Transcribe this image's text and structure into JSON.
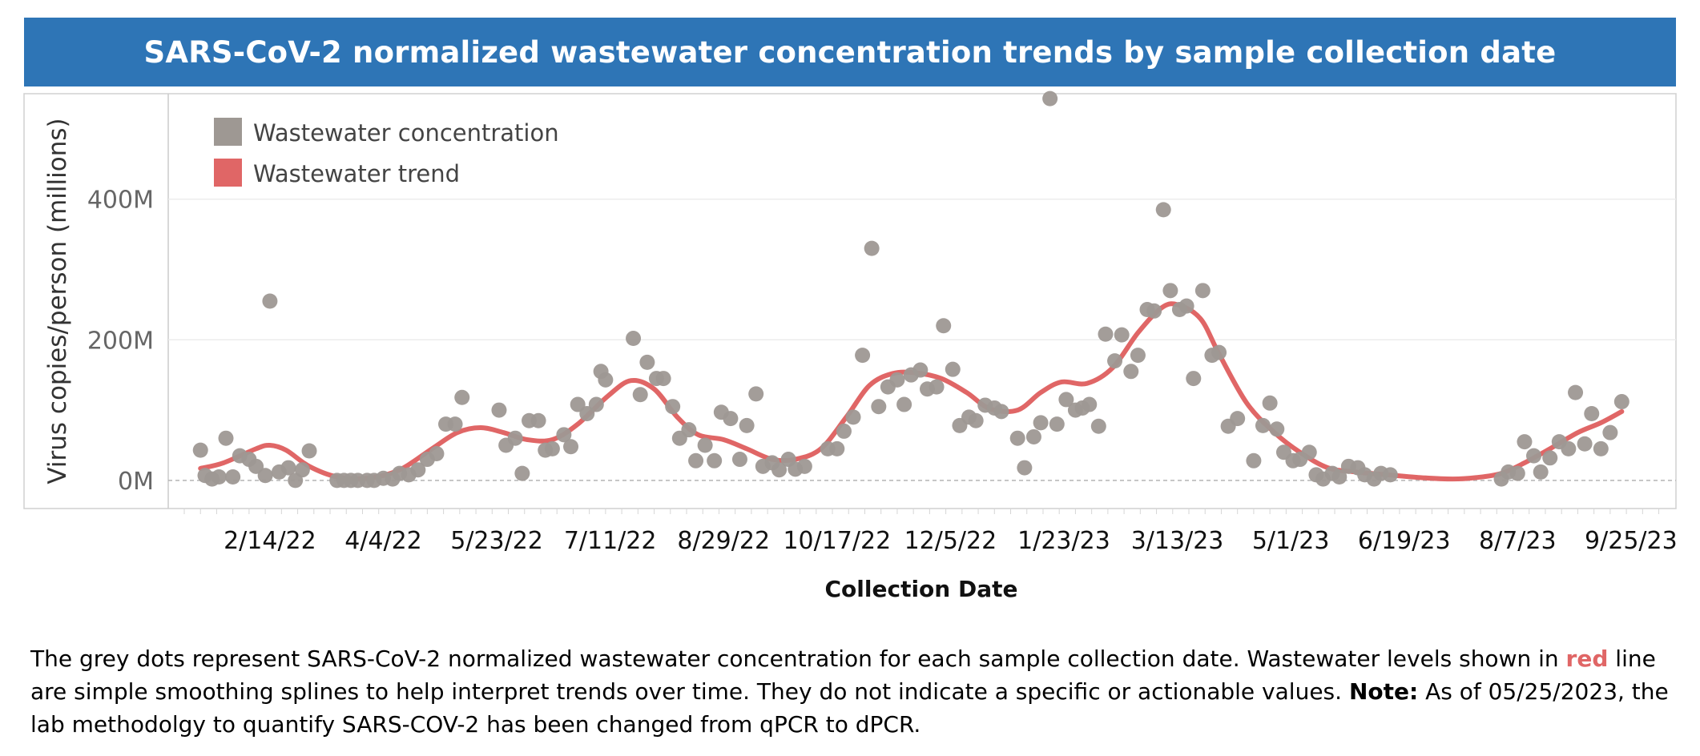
{
  "title": "SARS-CoV-2 normalized wastewater concentration trends by sample collection date",
  "legend": {
    "items": [
      {
        "label": "Wastewater concentration",
        "color": "#9E9893"
      },
      {
        "label": "Wastewater trend",
        "color": "#E06666"
      }
    ]
  },
  "description": {
    "part1": "The grey dots represent  SARS-CoV-2 normalized wastewater concentration for each sample collection date. Wastewater levels shown in ",
    "red_word": "red",
    "part2": " line are simple smoothing splines to help interpret trends over time. They do not indicate a specific or actionable values. ",
    "note_label": "Note:",
    "part3": " As of 05/25/2023, the lab methodolgy to quantify SARS-COV-2 has been changed from qPCR to dPCR."
  },
  "chart_data": {
    "type": "scatter",
    "title": "SARS-CoV-2 normalized wastewater concentration trends by sample collection date",
    "xlabel": "Collection Date",
    "ylabel": "Virus copies/person (millions)",
    "x_ticks": [
      "2/14/22",
      "4/4/22",
      "5/23/22",
      "7/11/22",
      "8/29/22",
      "10/17/22",
      "12/5/22",
      "1/23/23",
      "3/13/23",
      "5/1/23",
      "6/19/23",
      "8/7/23",
      "9/25/23"
    ],
    "y_ticks": [
      "0M",
      "200M",
      "400M"
    ],
    "y_tick_values": [
      0,
      200,
      400
    ],
    "ylim": [
      -40,
      550
    ],
    "xlim": [
      "2022-01-08",
      "2023-10-12"
    ],
    "legend_position": "top-left",
    "grid": true,
    "series": [
      {
        "name": "Wastewater concentration",
        "color": "#9E9893",
        "points": [
          [
            "2022-01-15",
            43
          ],
          [
            "2022-01-17",
            7
          ],
          [
            "2022-01-20",
            2
          ],
          [
            "2022-01-23",
            5
          ],
          [
            "2022-01-26",
            60
          ],
          [
            "2022-01-29",
            5
          ],
          [
            "2022-02-01",
            35
          ],
          [
            "2022-02-05",
            30
          ],
          [
            "2022-02-08",
            20
          ],
          [
            "2022-02-12",
            7
          ],
          [
            "2022-02-14",
            255
          ],
          [
            "2022-02-18",
            12
          ],
          [
            "2022-02-22",
            18
          ],
          [
            "2022-02-25",
            0
          ],
          [
            "2022-02-28",
            15
          ],
          [
            "2022-03-03",
            42
          ],
          [
            "2022-03-15",
            0
          ],
          [
            "2022-03-18",
            0
          ],
          [
            "2022-03-21",
            0
          ],
          [
            "2022-03-24",
            0
          ],
          [
            "2022-03-28",
            0
          ],
          [
            "2022-03-31",
            0
          ],
          [
            "2022-04-04",
            3
          ],
          [
            "2022-04-08",
            2
          ],
          [
            "2022-04-11",
            10
          ],
          [
            "2022-04-15",
            8
          ],
          [
            "2022-04-19",
            15
          ],
          [
            "2022-04-23",
            30
          ],
          [
            "2022-04-27",
            38
          ],
          [
            "2022-05-01",
            80
          ],
          [
            "2022-05-05",
            80
          ],
          [
            "2022-05-08",
            118
          ],
          [
            "2022-05-24",
            100
          ],
          [
            "2022-05-27",
            50
          ],
          [
            "2022-05-31",
            60
          ],
          [
            "2022-06-03",
            10
          ],
          [
            "2022-06-06",
            85
          ],
          [
            "2022-06-10",
            85
          ],
          [
            "2022-06-13",
            43
          ],
          [
            "2022-06-16",
            45
          ],
          [
            "2022-06-21",
            65
          ],
          [
            "2022-06-24",
            48
          ],
          [
            "2022-06-27",
            108
          ],
          [
            "2022-07-01",
            95
          ],
          [
            "2022-07-05",
            108
          ],
          [
            "2022-07-07",
            155
          ],
          [
            "2022-07-09",
            143
          ],
          [
            "2022-07-21",
            202
          ],
          [
            "2022-07-24",
            122
          ],
          [
            "2022-07-27",
            168
          ],
          [
            "2022-07-31",
            145
          ],
          [
            "2022-08-03",
            145
          ],
          [
            "2022-08-07",
            105
          ],
          [
            "2022-08-10",
            60
          ],
          [
            "2022-08-14",
            72
          ],
          [
            "2022-08-17",
            28
          ],
          [
            "2022-08-21",
            50
          ],
          [
            "2022-08-25",
            28
          ],
          [
            "2022-08-28",
            97
          ],
          [
            "2022-09-01",
            88
          ],
          [
            "2022-09-05",
            30
          ],
          [
            "2022-09-08",
            78
          ],
          [
            "2022-09-12",
            123
          ],
          [
            "2022-09-15",
            20
          ],
          [
            "2022-09-19",
            25
          ],
          [
            "2022-09-22",
            15
          ],
          [
            "2022-09-26",
            30
          ],
          [
            "2022-09-29",
            16
          ],
          [
            "2022-10-03",
            20
          ],
          [
            "2022-10-13",
            45
          ],
          [
            "2022-10-17",
            45
          ],
          [
            "2022-10-20",
            70
          ],
          [
            "2022-10-24",
            90
          ],
          [
            "2022-10-28",
            178
          ],
          [
            "2022-11-01",
            330
          ],
          [
            "2022-11-04",
            105
          ],
          [
            "2022-11-08",
            133
          ],
          [
            "2022-11-12",
            143
          ],
          [
            "2022-11-15",
            108
          ],
          [
            "2022-11-18",
            150
          ],
          [
            "2022-11-22",
            157
          ],
          [
            "2022-11-25",
            130
          ],
          [
            "2022-11-29",
            133
          ],
          [
            "2022-12-02",
            220
          ],
          [
            "2022-12-06",
            158
          ],
          [
            "2022-12-09",
            78
          ],
          [
            "2022-12-13",
            90
          ],
          [
            "2022-12-16",
            85
          ],
          [
            "2022-12-20",
            107
          ],
          [
            "2022-12-24",
            103
          ],
          [
            "2022-12-27",
            98
          ],
          [
            "2023-01-03",
            60
          ],
          [
            "2023-01-06",
            18
          ],
          [
            "2023-01-10",
            62
          ],
          [
            "2023-01-13",
            82
          ],
          [
            "2023-01-17",
            543
          ],
          [
            "2023-01-20",
            80
          ],
          [
            "2023-01-24",
            115
          ],
          [
            "2023-01-28",
            100
          ],
          [
            "2023-01-31",
            103
          ],
          [
            "2023-02-03",
            108
          ],
          [
            "2023-02-07",
            77
          ],
          [
            "2023-02-10",
            208
          ],
          [
            "2023-02-14",
            170
          ],
          [
            "2023-02-17",
            207
          ],
          [
            "2023-02-21",
            155
          ],
          [
            "2023-02-24",
            178
          ],
          [
            "2023-02-28",
            243
          ],
          [
            "2023-03-03",
            241
          ],
          [
            "2023-03-07",
            385
          ],
          [
            "2023-03-10",
            270
          ],
          [
            "2023-03-14",
            243
          ],
          [
            "2023-03-17",
            248
          ],
          [
            "2023-03-20",
            145
          ],
          [
            "2023-03-24",
            270
          ],
          [
            "2023-03-28",
            178
          ],
          [
            "2023-03-31",
            182
          ],
          [
            "2023-04-04",
            77
          ],
          [
            "2023-04-08",
            88
          ],
          [
            "2023-04-15",
            28
          ],
          [
            "2023-04-19",
            78
          ],
          [
            "2023-04-22",
            110
          ],
          [
            "2023-04-25",
            73
          ],
          [
            "2023-04-28",
            40
          ],
          [
            "2023-05-02",
            28
          ],
          [
            "2023-05-05",
            30
          ],
          [
            "2023-05-09",
            40
          ],
          [
            "2023-05-12",
            8
          ],
          [
            "2023-05-15",
            2
          ],
          [
            "2023-05-19",
            10
          ],
          [
            "2023-05-22",
            5
          ],
          [
            "2023-05-26",
            20
          ],
          [
            "2023-05-30",
            18
          ],
          [
            "2023-06-02",
            8
          ],
          [
            "2023-06-06",
            2
          ],
          [
            "2023-06-09",
            10
          ],
          [
            "2023-06-13",
            8
          ],
          [
            "2023-07-31",
            2
          ],
          [
            "2023-08-03",
            12
          ],
          [
            "2023-08-07",
            10
          ],
          [
            "2023-08-10",
            55
          ],
          [
            "2023-08-14",
            35
          ],
          [
            "2023-08-17",
            12
          ],
          [
            "2023-08-21",
            32
          ],
          [
            "2023-08-25",
            55
          ],
          [
            "2023-08-29",
            45
          ],
          [
            "2023-09-01",
            125
          ],
          [
            "2023-09-05",
            52
          ],
          [
            "2023-09-08",
            95
          ],
          [
            "2023-09-12",
            45
          ],
          [
            "2023-09-16",
            68
          ],
          [
            "2023-09-21",
            112
          ]
        ]
      },
      {
        "name": "Wastewater trend",
        "color": "#E06666",
        "points": [
          [
            "2022-01-15",
            17
          ],
          [
            "2022-01-25",
            25
          ],
          [
            "2022-02-08",
            45
          ],
          [
            "2022-02-14",
            50
          ],
          [
            "2022-02-21",
            43
          ],
          [
            "2022-03-03",
            20
          ],
          [
            "2022-03-15",
            5
          ],
          [
            "2022-03-28",
            3
          ],
          [
            "2022-04-11",
            15
          ],
          [
            "2022-04-25",
            45
          ],
          [
            "2022-05-06",
            68
          ],
          [
            "2022-05-16",
            75
          ],
          [
            "2022-05-26",
            68
          ],
          [
            "2022-06-05",
            58
          ],
          [
            "2022-06-16",
            58
          ],
          [
            "2022-06-27",
            80
          ],
          [
            "2022-07-10",
            120
          ],
          [
            "2022-07-20",
            142
          ],
          [
            "2022-07-30",
            130
          ],
          [
            "2022-08-09",
            90
          ],
          [
            "2022-08-18",
            65
          ],
          [
            "2022-08-29",
            58
          ],
          [
            "2022-09-08",
            45
          ],
          [
            "2022-09-19",
            30
          ],
          [
            "2022-09-29",
            30
          ],
          [
            "2022-10-10",
            45
          ],
          [
            "2022-10-21",
            90
          ],
          [
            "2022-10-31",
            135
          ],
          [
            "2022-11-10",
            152
          ],
          [
            "2022-11-20",
            153
          ],
          [
            "2022-12-01",
            145
          ],
          [
            "2022-12-12",
            125
          ],
          [
            "2022-12-22",
            102
          ],
          [
            "2023-01-03",
            100
          ],
          [
            "2023-01-13",
            125
          ],
          [
            "2023-01-22",
            140
          ],
          [
            "2023-02-02",
            138
          ],
          [
            "2023-02-13",
            160
          ],
          [
            "2023-02-24",
            210
          ],
          [
            "2023-03-06",
            245
          ],
          [
            "2023-03-13",
            250
          ],
          [
            "2023-03-23",
            230
          ],
          [
            "2023-03-31",
            180
          ],
          [
            "2023-04-12",
            110
          ],
          [
            "2023-04-24",
            68
          ],
          [
            "2023-05-05",
            40
          ],
          [
            "2023-05-17",
            18
          ],
          [
            "2023-05-29",
            12
          ],
          [
            "2023-06-12",
            8
          ],
          [
            "2023-06-26",
            4
          ],
          [
            "2023-07-10",
            2
          ],
          [
            "2023-07-20",
            4
          ],
          [
            "2023-07-31",
            10
          ],
          [
            "2023-08-10",
            25
          ],
          [
            "2023-08-21",
            45
          ],
          [
            "2023-09-02",
            68
          ],
          [
            "2023-09-12",
            82
          ],
          [
            "2023-09-21",
            98
          ]
        ]
      }
    ]
  }
}
